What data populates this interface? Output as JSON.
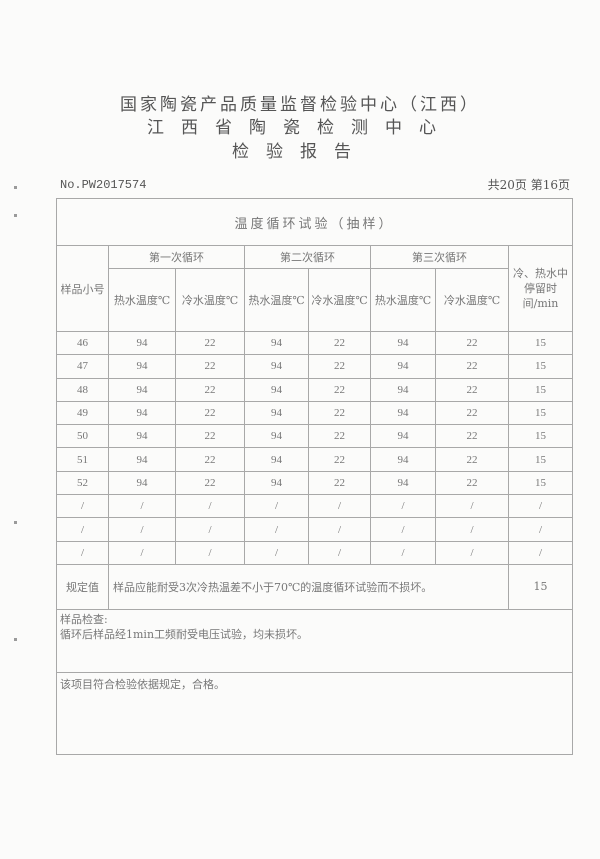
{
  "header": {
    "line1": "国家陶瓷产品质量监督检验中心（江西）",
    "line2": "江西省陶瓷检测中心",
    "line3": "检验报告",
    "report_no": "No.PW2017574",
    "pages": "共20页 第16页"
  },
  "table": {
    "title": "温度循环试验（抽样）",
    "col_sample": "样品小号",
    "cycles": [
      "第一次循环",
      "第二次循环",
      "第三次循环"
    ],
    "hot": "热水温度℃",
    "cold": "冷水温度℃",
    "dwell": "冷、热水中停留时间/min",
    "rows": [
      [
        "46",
        "94",
        "22",
        "94",
        "22",
        "94",
        "22",
        "15"
      ],
      [
        "47",
        "94",
        "22",
        "94",
        "22",
        "94",
        "22",
        "15"
      ],
      [
        "48",
        "94",
        "22",
        "94",
        "22",
        "94",
        "22",
        "15"
      ],
      [
        "49",
        "94",
        "22",
        "94",
        "22",
        "94",
        "22",
        "15"
      ],
      [
        "50",
        "94",
        "22",
        "94",
        "22",
        "94",
        "22",
        "15"
      ],
      [
        "51",
        "94",
        "22",
        "94",
        "22",
        "94",
        "22",
        "15"
      ],
      [
        "52",
        "94",
        "22",
        "94",
        "22",
        "94",
        "22",
        "15"
      ],
      [
        "/",
        "/",
        "/",
        "/",
        "/",
        "/",
        "/",
        "/"
      ],
      [
        "/",
        "/",
        "/",
        "/",
        "/",
        "/",
        "/",
        "/"
      ],
      [
        "/",
        "/",
        "/",
        "/",
        "/",
        "/",
        "/",
        "/"
      ]
    ],
    "reg_label": "规定值",
    "reg_text": "样品应能耐受3次冷热温差不小于70℃的温度循环试验而不损坏。",
    "reg_value": "15",
    "inspection_label": "样品检查:",
    "inspection_text": "循环后样品经1min工频耐受电压试验，均未损坏。",
    "conclusion": "该项目符合检验依据规定，合格。"
  }
}
